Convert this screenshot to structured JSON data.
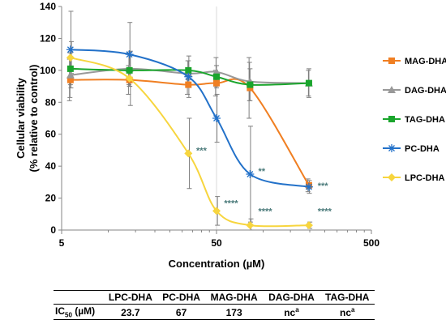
{
  "chart_data": {
    "type": "line",
    "xlabel": "Concentration (µM)",
    "ylabel_lines": [
      "Cellular viability",
      "(% relative to control)"
    ],
    "xscale": "log",
    "xlim": [
      5,
      500
    ],
    "ylim": [
      0,
      140
    ],
    "xticks": [
      5,
      50,
      500
    ],
    "yticks": [
      0,
      20,
      40,
      60,
      80,
      100,
      120,
      140
    ],
    "x": [
      5.7,
      13.7,
      32.9,
      50,
      82.3,
      197.5
    ],
    "legend_position": "right",
    "series": [
      {
        "name": "MAG-DHA",
        "color": "#f07f22",
        "marker": "square",
        "values": [
          94,
          94,
          91,
          92,
          89,
          28
        ],
        "errors": [
          13,
          9,
          6,
          8,
          19,
          4
        ]
      },
      {
        "name": "DAG-DHA",
        "color": "#999999",
        "marker": "triangle",
        "values": [
          97,
          101,
          98,
          99,
          93,
          92
        ],
        "errors": [
          14,
          10,
          8,
          9,
          12,
          8
        ]
      },
      {
        "name": "TAG-DHA",
        "color": "#1aa52c",
        "marker": "square",
        "values": [
          101,
          100,
          100,
          96,
          91,
          92
        ],
        "errors": [
          10,
          10,
          6,
          7,
          10,
          9
        ]
      },
      {
        "name": "PC-DHA",
        "color": "#2271c9",
        "marker": "star",
        "values": [
          113,
          110,
          96,
          70,
          35,
          27
        ],
        "errors": [
          24,
          20,
          13,
          15,
          30,
          4
        ]
      },
      {
        "name": "LPC-DHA",
        "color": "#f7d53e",
        "marker": "diamond",
        "values": [
          108,
          95,
          48,
          12,
          3,
          3
        ],
        "errors": [
          10,
          17,
          22,
          9,
          4,
          2
        ]
      }
    ],
    "annotations": [
      {
        "text": "***",
        "x": 37,
        "y": 50
      },
      {
        "text": "****",
        "x": 56,
        "y": 17
      },
      {
        "text": "**",
        "x": 93,
        "y": 37
      },
      {
        "text": "****",
        "x": 93,
        "y": 12
      },
      {
        "text": "***",
        "x": 225,
        "y": 28
      },
      {
        "text": "****",
        "x": 225,
        "y": 12
      }
    ]
  },
  "ic50_table": {
    "row_label": "IC",
    "row_label_sub": "50",
    "row_label_unit": " (µM)",
    "headers": [
      "LPC-DHA",
      "PC-DHA",
      "MAG-DHA",
      "DAG-DHA",
      "TAG-DHA"
    ],
    "values": [
      {
        "text": "23.7",
        "sup": ""
      },
      {
        "text": "67",
        "sup": ""
      },
      {
        "text": "173",
        "sup": ""
      },
      {
        "text": "nc",
        "sup": "a"
      },
      {
        "text": "nc",
        "sup": "a"
      }
    ]
  }
}
